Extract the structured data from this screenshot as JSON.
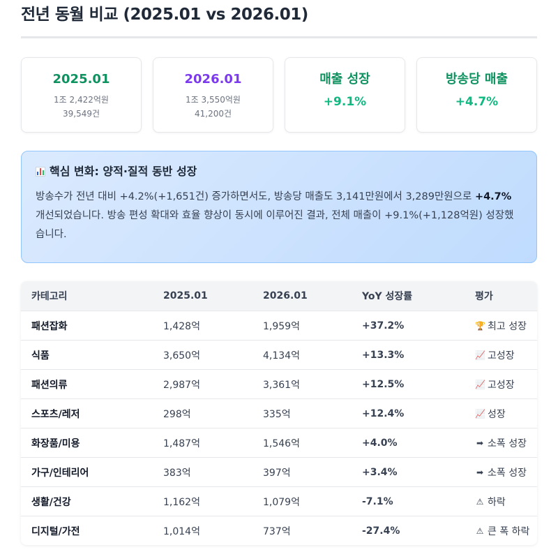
{
  "page": {
    "title": "전년 동월 비교 (2025.01 vs 2026.01)"
  },
  "cards": [
    {
      "title": "2025.01",
      "line1": "1조 2,422억원",
      "line2": "39,549건",
      "color": "#0f9160"
    },
    {
      "title": "2026.01",
      "line1": "1조 3,550억원",
      "line2": "41,200건",
      "color": "#7c3aed"
    },
    {
      "title": "매출 성장",
      "value": "+9.1%",
      "color": "#0f9160"
    },
    {
      "title": "방송당 매출",
      "value": "+4.7%",
      "color": "#0f9160"
    }
  ],
  "insight": {
    "icon": "bar-chart-icon",
    "heading": "핵심 변화: 양적·질적 동반 성장",
    "body_pre": "방송수가 전년 대비 +4.2%(+1,651건) 증가하면서도, 방송당 매출도 3,141만원에서 3,289만원으로 ",
    "body_bold": "+4.7%",
    "body_post": " 개선되었습니다. 방송 편성 확대와 효율 향상이 동시에 이루어진 결과, 전체 매출이 +9.1%(+1,128억원) 성장했습니다."
  },
  "table": {
    "headers": [
      "카테고리",
      "2025.01",
      "2026.01",
      "YoY 성장률",
      "평가"
    ],
    "rows": [
      {
        "category": "패션잡화",
        "y2025": "1,428억",
        "y2026": "1,959억",
        "yoy": "+37.2%",
        "eval_icon": "trophy-icon",
        "eval": "최고 성장",
        "trend": "pos"
      },
      {
        "category": "식품",
        "y2025": "3,650억",
        "y2026": "4,134억",
        "yoy": "+13.3%",
        "eval_icon": "chart-up-icon",
        "eval": "고성장",
        "trend": "pos"
      },
      {
        "category": "패션의류",
        "y2025": "2,987억",
        "y2026": "3,361억",
        "yoy": "+12.5%",
        "eval_icon": "chart-up-icon",
        "eval": "고성장",
        "trend": "pos"
      },
      {
        "category": "스포츠/레저",
        "y2025": "298억",
        "y2026": "335억",
        "yoy": "+12.4%",
        "eval_icon": "chart-up-icon",
        "eval": "성장",
        "trend": "pos"
      },
      {
        "category": "화장품/미용",
        "y2025": "1,487억",
        "y2026": "1,546억",
        "yoy": "+4.0%",
        "eval_icon": "arrow-right-icon",
        "eval": "소폭 성장",
        "trend": "pos"
      },
      {
        "category": "가구/인테리어",
        "y2025": "383억",
        "y2026": "397억",
        "yoy": "+3.4%",
        "eval_icon": "arrow-right-icon",
        "eval": "소폭 성장",
        "trend": "pos"
      },
      {
        "category": "생활/건강",
        "y2025": "1,162억",
        "y2026": "1,079억",
        "yoy": "-7.1%",
        "eval_icon": "warning-icon",
        "eval": "하락",
        "trend": "neg"
      },
      {
        "category": "디지털/가전",
        "y2025": "1,014억",
        "y2026": "737억",
        "yoy": "-27.4%",
        "eval_icon": "warning-icon",
        "eval": "큰 폭 하락",
        "trend": "neg"
      }
    ]
  },
  "colors": {
    "positive": "#10b981",
    "negative": "#ef4444",
    "insight_bg": "#dbeafe",
    "border": "#e5e7eb"
  }
}
